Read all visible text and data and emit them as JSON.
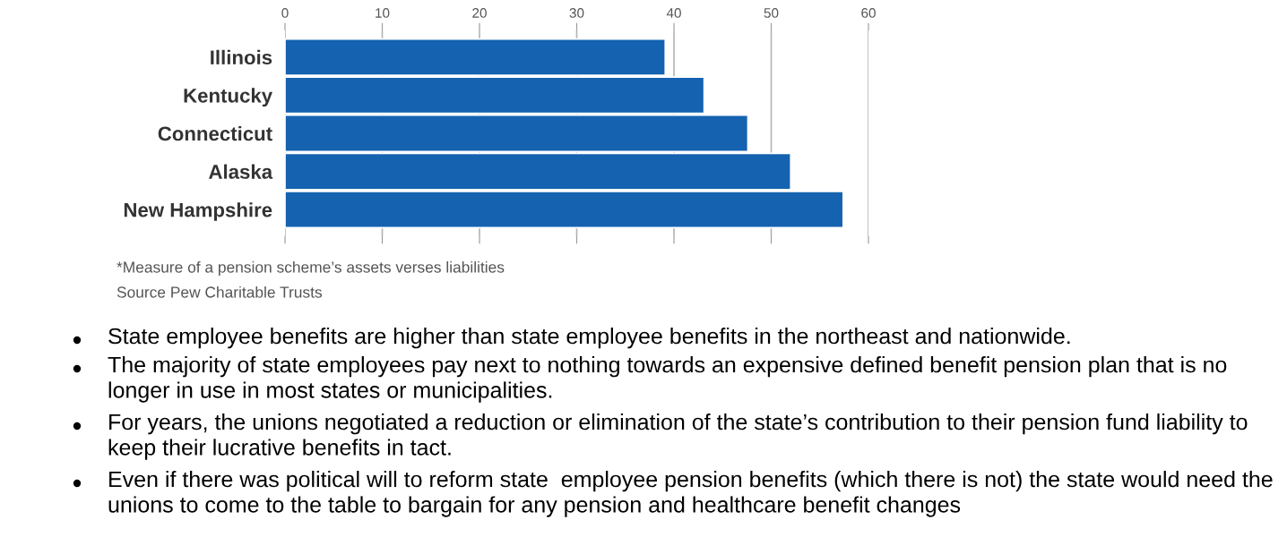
{
  "chart_data": {
    "type": "bar",
    "orientation": "horizontal",
    "categories": [
      "Illinois",
      "Kentucky",
      "Connecticut",
      "Alaska",
      "New Hampshire"
    ],
    "values": [
      39.1,
      43.1,
      47.6,
      52,
      57.4
    ],
    "color": "#1462b0",
    "xlim": [
      0,
      60
    ],
    "xticks": [
      0,
      10,
      20,
      30,
      40,
      50,
      60
    ],
    "grid": "x",
    "annotations": [
      "*Measure of a pension scheme’s assets verses liabilities",
      "Source Pew Charitable Trusts",
      "State employee benefits are higher than state employee benefits in the northeast and nationwide.",
      "The majority of state employees pay next to nothing towards an expensive defined benefit pension plan that is no longer in use in most states or municipalities.",
      "For years, the unions negotiated a reduction or elimination of the state’s contribution to their pension fund liability to keep their lucrative benefits in tact.",
      "Even if there was political will to reform state  employee pension benefits (which there is not) the state would need the unions to come to the table to bargain for any pension and healthcare benefit changes"
    ]
  }
}
